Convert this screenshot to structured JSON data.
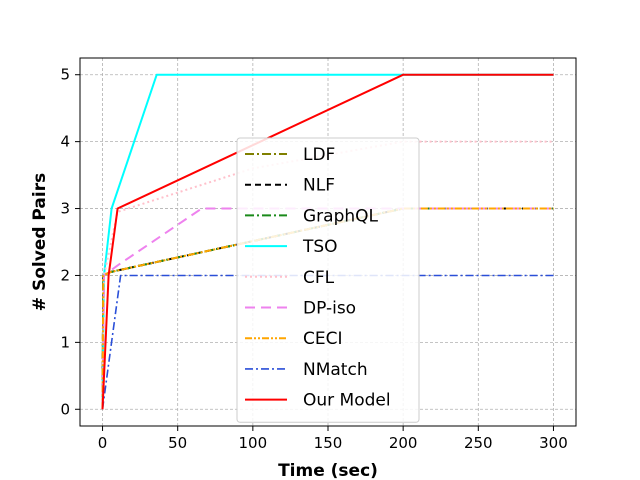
{
  "chart_data": {
    "type": "line",
    "title": "",
    "xlabel": "Time (sec)",
    "ylabel": "# Solved Pairs",
    "xlim": [
      -15,
      315
    ],
    "ylim": [
      -0.25,
      5.25
    ],
    "xticks": [
      0,
      50,
      100,
      150,
      200,
      250,
      300
    ],
    "yticks": [
      0,
      1,
      2,
      3,
      4,
      5
    ],
    "grid": true,
    "legend_position": "center",
    "series": [
      {
        "name": "LDF",
        "color": "#808000",
        "dash": "9,3,2,3",
        "width": 2,
        "x": [
          0,
          0.5,
          5,
          200,
          300
        ],
        "y": [
          0,
          2,
          2.05,
          3,
          3
        ]
      },
      {
        "name": "NLF",
        "color": "#000000",
        "dash": "6,4",
        "width": 2,
        "x": [
          0,
          0.5,
          5,
          200,
          300
        ],
        "y": [
          0,
          2,
          2.05,
          3,
          3
        ]
      },
      {
        "name": "GraphQL",
        "color": "#1a8a1a",
        "dash": "9,3,2,3",
        "width": 2,
        "x": [
          0,
          0.5,
          5,
          200,
          300
        ],
        "y": [
          0,
          2,
          2.05,
          3,
          3
        ]
      },
      {
        "name": "TSO",
        "color": "#00ffff",
        "dash": "",
        "width": 2,
        "x": [
          0,
          1,
          6,
          36,
          200,
          300
        ],
        "y": [
          0,
          2,
          3,
          5,
          5,
          5
        ]
      },
      {
        "name": "CFL",
        "color": "#ffc0cb",
        "dash": "2,3",
        "width": 2,
        "x": [
          0,
          1,
          10,
          100,
          200,
          300
        ],
        "y": [
          0,
          2,
          2.95,
          3.6,
          4,
          4
        ]
      },
      {
        "name": "DP-iso",
        "color": "#ee82ee",
        "dash": "10,6",
        "width": 2,
        "x": [
          0,
          1,
          10,
          66,
          200,
          300
        ],
        "y": [
          0,
          2,
          2.15,
          3,
          3,
          3
        ]
      },
      {
        "name": "CECI",
        "color": "#ffa500",
        "dash": "7,2,2,2,2,2",
        "width": 2,
        "x": [
          0,
          0.5,
          5,
          200,
          300
        ],
        "y": [
          0,
          2,
          2.05,
          3,
          3
        ]
      },
      {
        "name": "NMatch",
        "color": "#2a4fd8",
        "dash": "8,3,2,3",
        "width": 1.6,
        "x": [
          0,
          12,
          300
        ],
        "y": [
          0,
          2,
          2
        ]
      },
      {
        "name": "Our Model",
        "color": "#ff0000",
        "dash": "",
        "width": 2,
        "x": [
          0,
          4,
          10,
          200,
          300
        ],
        "y": [
          0,
          2,
          3,
          5,
          5
        ]
      }
    ]
  }
}
